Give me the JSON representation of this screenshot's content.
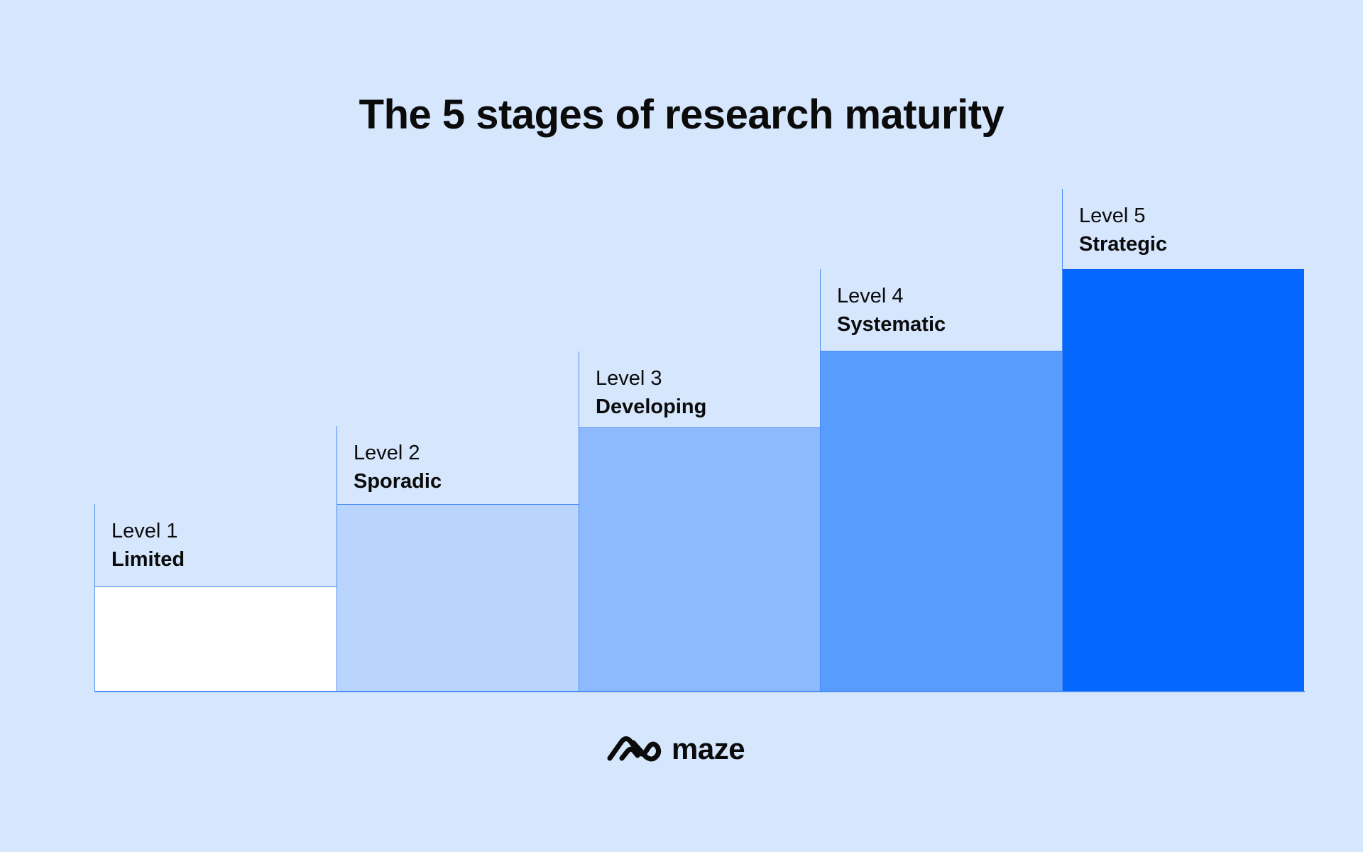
{
  "title": "The 5 stages of research maturity",
  "stages": [
    {
      "level": "Level 1",
      "name": "Limited",
      "color": "#ffffff"
    },
    {
      "level": "Level 2",
      "name": "Sporadic",
      "color": "#b9d4fd"
    },
    {
      "level": "Level 3",
      "name": "Developing",
      "color": "#8cbafc"
    },
    {
      "level": "Level 4",
      "name": "Systematic",
      "color": "#589dfd"
    },
    {
      "level": "Level 5",
      "name": "Strategic",
      "color": "#0567fd"
    }
  ],
  "colors": {
    "background": "#d5e6fd",
    "line": "#4b8df5",
    "text": "#0b0b0b"
  },
  "logo": {
    "icon": "maze-logo-icon",
    "wordmark": "maze"
  }
}
